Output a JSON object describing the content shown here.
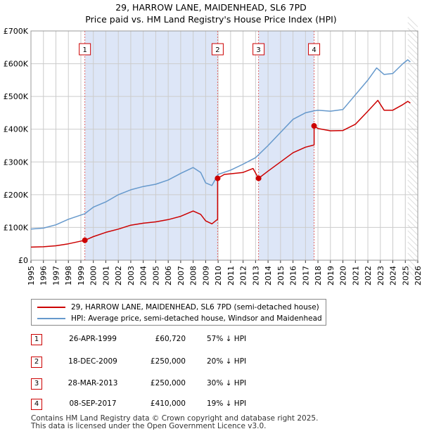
{
  "chart_data": {
    "type": "line",
    "title": "29, HARROW LANE, MAIDENHEAD, SL6 7PD",
    "subtitle": "Price paid vs. HM Land Registry's House Price Index (HPI)",
    "xlim": [
      1995,
      2026
    ],
    "ylim": [
      0,
      700000
    ],
    "x_ticks": [
      "1995",
      "1996",
      "1997",
      "1998",
      "1999",
      "2000",
      "2001",
      "2002",
      "2003",
      "2004",
      "2005",
      "2006",
      "2007",
      "2008",
      "2009",
      "2010",
      "2011",
      "2012",
      "2013",
      "2014",
      "2015",
      "2016",
      "2017",
      "2018",
      "2019",
      "2020",
      "2021",
      "2022",
      "2023",
      "2024",
      "2025",
      "2026"
    ],
    "y_ticks": [
      {
        "value": 0,
        "label": "£0"
      },
      {
        "value": 100000,
        "label": "£100K"
      },
      {
        "value": 200000,
        "label": "£200K"
      },
      {
        "value": 300000,
        "label": "£300K"
      },
      {
        "value": 400000,
        "label": "£400K"
      },
      {
        "value": 500000,
        "label": "£500K"
      },
      {
        "value": 600000,
        "label": "£600K"
      },
      {
        "value": 700000,
        "label": "£700K"
      }
    ],
    "grid": true,
    "colors": {
      "property": "#cc0000",
      "hpi": "#6699cc",
      "shade": "#dde6f7",
      "marker_line": "#e06666"
    },
    "shaded_ranges": [
      [
        1999.32,
        2009.96
      ],
      [
        2013.24,
        2017.69
      ]
    ],
    "forecast_start": 2025.2,
    "series": [
      {
        "name": "29, HARROW LANE, MAIDENHEAD, SL6 7PD (semi-detached house)",
        "color": "#cc0000",
        "points": [
          [
            1995,
            40000
          ],
          [
            1996,
            41000
          ],
          [
            1997,
            44000
          ],
          [
            1998,
            50000
          ],
          [
            1999.32,
            60720
          ],
          [
            2000,
            72000
          ],
          [
            2001,
            85000
          ],
          [
            2002,
            95000
          ],
          [
            2003,
            107000
          ],
          [
            2004,
            113000
          ],
          [
            2005,
            117000
          ],
          [
            2006,
            124000
          ],
          [
            2007,
            134000
          ],
          [
            2008,
            150000
          ],
          [
            2008.6,
            140000
          ],
          [
            2009,
            120000
          ],
          [
            2009.5,
            111000
          ],
          [
            2009.96,
            125000
          ],
          [
            2009.96,
            250000
          ],
          [
            2010.5,
            262000
          ],
          [
            2011,
            264000
          ],
          [
            2012,
            268000
          ],
          [
            2012.8,
            280000
          ],
          [
            2013.24,
            250000
          ],
          [
            2014,
            272000
          ],
          [
            2015,
            300000
          ],
          [
            2016,
            328000
          ],
          [
            2017,
            345000
          ],
          [
            2017.69,
            352000
          ],
          [
            2017.69,
            410000
          ],
          [
            2018,
            402000
          ],
          [
            2019,
            395000
          ],
          [
            2020,
            396000
          ],
          [
            2021,
            415000
          ],
          [
            2022,
            455000
          ],
          [
            2022.8,
            488000
          ],
          [
            2023.3,
            458000
          ],
          [
            2024,
            458000
          ],
          [
            2024.8,
            475000
          ],
          [
            2025.2,
            485000
          ],
          [
            2025.4,
            480000
          ]
        ]
      },
      {
        "name": "HPI: Average price, semi-detached house, Windsor and Maidenhead",
        "color": "#6699cc",
        "points": [
          [
            1995,
            95000
          ],
          [
            1996,
            98000
          ],
          [
            1997,
            108000
          ],
          [
            1998,
            125000
          ],
          [
            1999.32,
            142000
          ],
          [
            2000,
            162000
          ],
          [
            2001,
            178000
          ],
          [
            2002,
            200000
          ],
          [
            2003,
            215000
          ],
          [
            2004,
            225000
          ],
          [
            2005,
            232000
          ],
          [
            2006,
            245000
          ],
          [
            2007,
            265000
          ],
          [
            2008,
            283000
          ],
          [
            2008.6,
            268000
          ],
          [
            2009,
            236000
          ],
          [
            2009.5,
            228000
          ],
          [
            2010,
            262000
          ],
          [
            2011,
            275000
          ],
          [
            2012,
            293000
          ],
          [
            2013,
            313000
          ],
          [
            2014,
            350000
          ],
          [
            2015,
            390000
          ],
          [
            2016,
            430000
          ],
          [
            2017,
            450000
          ],
          [
            2017.69,
            456000
          ],
          [
            2018,
            458000
          ],
          [
            2019,
            455000
          ],
          [
            2020,
            460000
          ],
          [
            2021,
            505000
          ],
          [
            2022,
            550000
          ],
          [
            2022.7,
            587000
          ],
          [
            2023.3,
            567000
          ],
          [
            2024,
            570000
          ],
          [
            2024.8,
            600000
          ],
          [
            2025.2,
            612000
          ],
          [
            2025.4,
            605000
          ]
        ]
      }
    ],
    "sales": [
      {
        "label": "1",
        "date": "26-APR-1999",
        "x": 1999.32,
        "price": 60720,
        "price_label": "£60,720",
        "hpi_delta": "57% ↓ HPI"
      },
      {
        "label": "2",
        "date": "18-DEC-2009",
        "x": 2009.96,
        "price": 250000,
        "price_label": "£250,000",
        "hpi_delta": "20% ↓ HPI"
      },
      {
        "label": "3",
        "date": "28-MAR-2013",
        "x": 2013.24,
        "price": 250000,
        "price_label": "£250,000",
        "hpi_delta": "30% ↓ HPI"
      },
      {
        "label": "4",
        "date": "08-SEP-2017",
        "x": 2017.69,
        "price": 410000,
        "price_label": "£410,000",
        "hpi_delta": "19% ↓ HPI"
      }
    ]
  },
  "footer": {
    "line1": "Contains HM Land Registry data © Crown copyright and database right 2025.",
    "line2": "This data is licensed under the Open Government Licence v3.0."
  }
}
